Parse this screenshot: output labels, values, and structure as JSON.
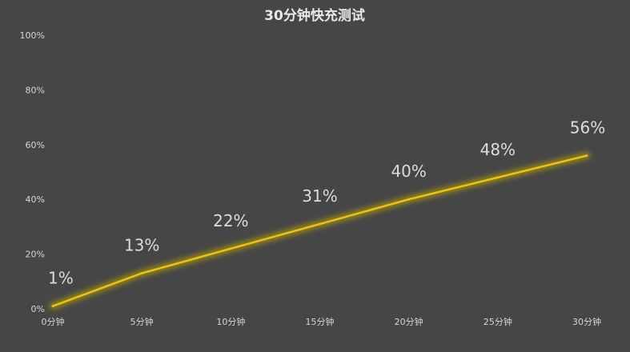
{
  "chart_data": {
    "type": "line",
    "title": "30分钟快充测试",
    "xlabel": "",
    "ylabel": "",
    "categories": [
      "0分钟",
      "5分钟",
      "10分钟",
      "15分钟",
      "20分钟",
      "25分钟",
      "30分钟"
    ],
    "series": [
      {
        "values": [
          1,
          13,
          22,
          31,
          40,
          48,
          56
        ],
        "labels": [
          "1%",
          "13%",
          "22%",
          "31%",
          "40%",
          "48%",
          "56%"
        ],
        "color": "#f2c500"
      }
    ],
    "ylim": [
      0,
      100
    ],
    "yticks": [
      "0%",
      "20%",
      "40%",
      "60%",
      "80%",
      "100%"
    ],
    "grid": false,
    "legend": "none",
    "background": "#464646"
  }
}
